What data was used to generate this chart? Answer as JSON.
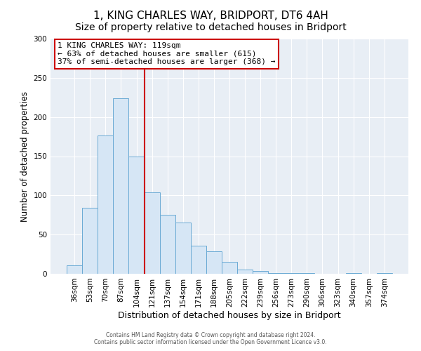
{
  "title": "1, KING CHARLES WAY, BRIDPORT, DT6 4AH",
  "subtitle": "Size of property relative to detached houses in Bridport",
  "xlabel": "Distribution of detached houses by size in Bridport",
  "ylabel": "Number of detached properties",
  "bar_labels": [
    "36sqm",
    "53sqm",
    "70sqm",
    "87sqm",
    "104sqm",
    "121sqm",
    "137sqm",
    "154sqm",
    "171sqm",
    "188sqm",
    "205sqm",
    "222sqm",
    "239sqm",
    "256sqm",
    "273sqm",
    "290sqm",
    "306sqm",
    "323sqm",
    "340sqm",
    "357sqm",
    "374sqm"
  ],
  "bar_values": [
    11,
    84,
    176,
    224,
    150,
    104,
    75,
    65,
    36,
    29,
    15,
    5,
    4,
    1,
    1,
    1,
    0,
    0,
    1,
    0,
    1
  ],
  "bar_color": "#d6e6f5",
  "bar_edge_color": "#6aaad4",
  "property_line_x": 5,
  "annotation_title": "1 KING CHARLES WAY: 119sqm",
  "annotation_line1": "← 63% of detached houses are smaller (615)",
  "annotation_line2": "37% of semi-detached houses are larger (368) →",
  "annotation_box_color": "#ffffff",
  "annotation_box_edge_color": "#cc0000",
  "vline_color": "#cc0000",
  "footer1": "Contains HM Land Registry data © Crown copyright and database right 2024.",
  "footer2": "Contains public sector information licensed under the Open Government Licence v3.0.",
  "ylim": [
    0,
    300
  ],
  "yticks": [
    0,
    50,
    100,
    150,
    200,
    250,
    300
  ],
  "background_color": "#ffffff",
  "plot_background": "#e8eef5",
  "grid_color": "#ffffff",
  "title_fontsize": 11,
  "subtitle_fontsize": 10
}
